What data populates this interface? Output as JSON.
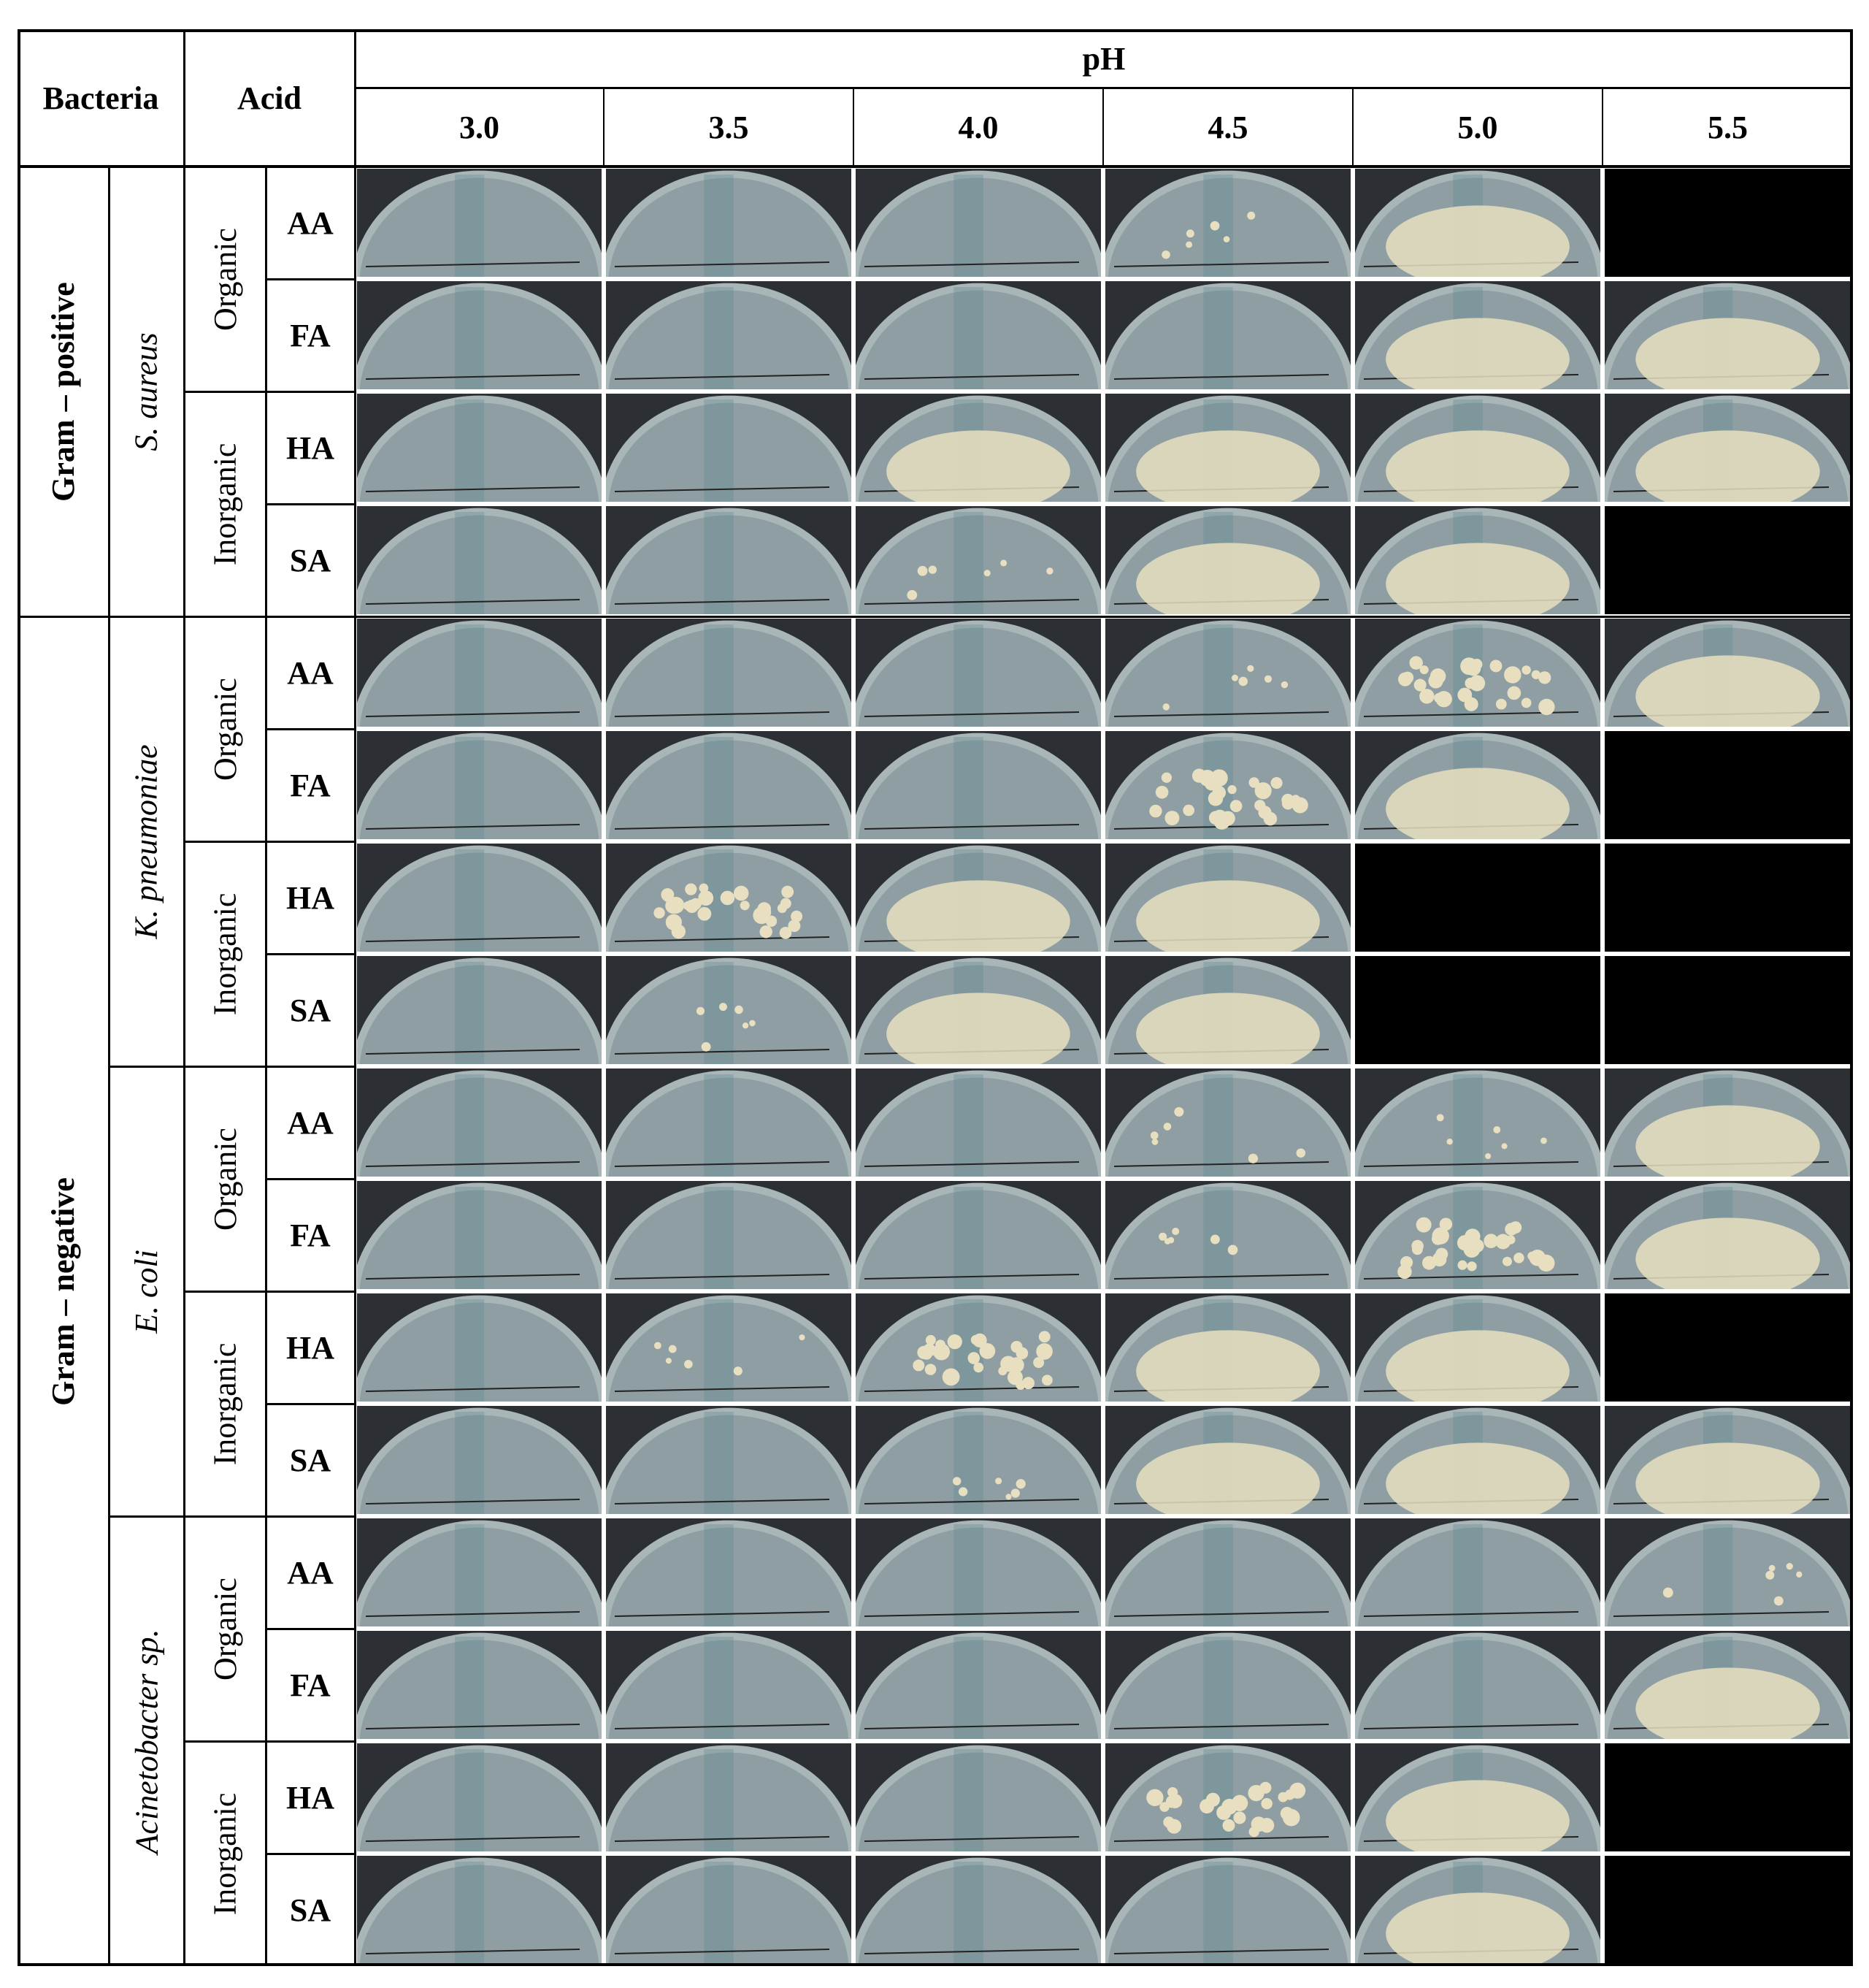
{
  "header": {
    "bacteria_label": "Bacteria",
    "acid_label": "Acid",
    "ph_label": "pH",
    "ph_values": [
      "3.0",
      "3.5",
      "4.0",
      "4.5",
      "5.0",
      "5.5"
    ]
  },
  "gram_groups": [
    {
      "label": "Gram – positive"
    },
    {
      "label": "Gram – negative"
    }
  ],
  "species": [
    {
      "label": "S. aureus"
    },
    {
      "label": "K. pneumoniae"
    },
    {
      "label": "E. coli"
    },
    {
      "label": "Acinetobacter sp."
    }
  ],
  "acid_types": [
    "Organic",
    "Inorganic"
  ],
  "acids": [
    "AA",
    "FA",
    "HA",
    "SA"
  ],
  "rows": [
    {
      "species": "S. aureus",
      "type": "Organic",
      "acid": "AA",
      "plates": [
        "clear",
        "clear",
        "clear",
        "few",
        "confluent",
        "none"
      ]
    },
    {
      "species": "S. aureus",
      "type": "Organic",
      "acid": "FA",
      "plates": [
        "clear",
        "clear",
        "clear",
        "clear",
        "confluent",
        "confluent"
      ]
    },
    {
      "species": "S. aureus",
      "type": "Inorganic",
      "acid": "HA",
      "plates": [
        "clear",
        "clear",
        "confluent",
        "confluent",
        "confluent",
        "confluent"
      ]
    },
    {
      "species": "S. aureus",
      "type": "Inorganic",
      "acid": "SA",
      "plates": [
        "clear",
        "clear",
        "few",
        "confluent",
        "confluent",
        "none"
      ]
    },
    {
      "species": "K. pneumoniae",
      "type": "Organic",
      "acid": "AA",
      "plates": [
        "clear",
        "clear",
        "clear",
        "few",
        "many",
        "confluent"
      ]
    },
    {
      "species": "K. pneumoniae",
      "type": "Organic",
      "acid": "FA",
      "plates": [
        "clear",
        "clear",
        "clear",
        "many",
        "confluent",
        "none"
      ]
    },
    {
      "species": "K. pneumoniae",
      "type": "Inorganic",
      "acid": "HA",
      "plates": [
        "clear",
        "many",
        "confluent",
        "confluent",
        "none",
        "none"
      ]
    },
    {
      "species": "K. pneumoniae",
      "type": "Inorganic",
      "acid": "SA",
      "plates": [
        "clear",
        "few",
        "confluent",
        "confluent",
        "none",
        "none"
      ]
    },
    {
      "species": "E. coli",
      "type": "Organic",
      "acid": "AA",
      "plates": [
        "clear",
        "clear",
        "clear",
        "few",
        "few",
        "confluent"
      ]
    },
    {
      "species": "E. coli",
      "type": "Organic",
      "acid": "FA",
      "plates": [
        "clear",
        "clear",
        "clear",
        "few",
        "many",
        "confluent"
      ]
    },
    {
      "species": "E. coli",
      "type": "Inorganic",
      "acid": "HA",
      "plates": [
        "clear",
        "few",
        "many",
        "confluent",
        "confluent",
        "none"
      ]
    },
    {
      "species": "E. coli",
      "type": "Inorganic",
      "acid": "SA",
      "plates": [
        "clear",
        "clear",
        "few",
        "confluent",
        "confluent",
        "confluent"
      ]
    },
    {
      "species": "Acinetobacter sp.",
      "type": "Organic",
      "acid": "AA",
      "plates": [
        "clear",
        "clear",
        "clear",
        "clear",
        "clear",
        "few"
      ]
    },
    {
      "species": "Acinetobacter sp.",
      "type": "Organic",
      "acid": "FA",
      "plates": [
        "clear",
        "clear",
        "clear",
        "clear",
        "clear",
        "confluent"
      ]
    },
    {
      "species": "Acinetobacter sp.",
      "type": "Inorganic",
      "acid": "HA",
      "plates": [
        "clear",
        "clear",
        "clear",
        "many",
        "confluent",
        "none"
      ]
    },
    {
      "species": "Acinetobacter sp.",
      "type": "Inorganic",
      "acid": "SA",
      "plates": [
        "clear",
        "clear",
        "clear",
        "clear",
        "confluent",
        "none"
      ]
    }
  ],
  "colors": {
    "plate_dish": "#a9b6b8",
    "plate_agar": "#8f9ea3",
    "plate_bg_dark": "#2c2f33",
    "colony": "#e8dfc1",
    "no_image": "#000000",
    "grid_line": "#000000"
  }
}
